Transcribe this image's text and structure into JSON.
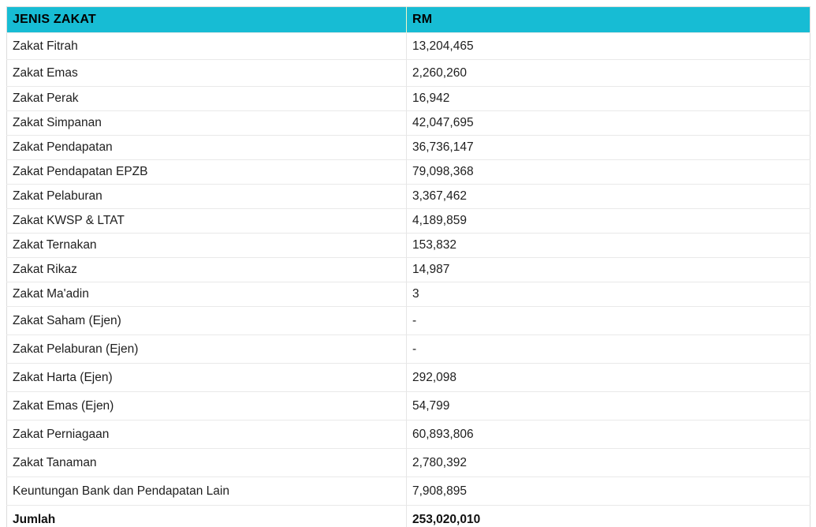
{
  "colors": {
    "header_bg": "#17BCD4",
    "header_text": "#000000",
    "body_text": "#1e1e1e",
    "outer_border": "#dcdcdc",
    "row_line": "#e9e9e9"
  },
  "table": {
    "header": {
      "jenis": "JENIS ZAKAT",
      "rm": "RM"
    },
    "rows": [
      {
        "jenis": "Zakat Fitrah",
        "rm": "13,204,465"
      },
      {
        "jenis": "Zakat Emas",
        "rm": "2,260,260"
      },
      {
        "jenis": "Zakat Perak",
        "rm": "16,942"
      },
      {
        "jenis": "Zakat Simpanan",
        "rm": "42,047,695"
      },
      {
        "jenis": "Zakat Pendapatan",
        "rm": "36,736,147"
      },
      {
        "jenis": "Zakat Pendapatan EPZB",
        "rm": "79,098,368"
      },
      {
        "jenis": "Zakat Pelaburan",
        "rm": "3,367,462"
      },
      {
        "jenis": "Zakat KWSP & LTAT",
        "rm": "4,189,859"
      },
      {
        "jenis": "Zakat Ternakan",
        "rm": "153,832"
      },
      {
        "jenis": "Zakat Rikaz",
        "rm": "14,987"
      },
      {
        "jenis": "Zakat Ma'adin",
        "rm": "3"
      },
      {
        "jenis": "Zakat Saham (Ejen)",
        "rm": "-"
      },
      {
        "jenis": "Zakat Pelaburan (Ejen)",
        "rm": "-"
      },
      {
        "jenis": "Zakat Harta (Ejen)",
        "rm": "292,098"
      },
      {
        "jenis": "Zakat Emas (Ejen)",
        "rm": "54,799"
      },
      {
        "jenis": "Zakat Perniagaan",
        "rm": "60,893,806"
      },
      {
        "jenis": "Zakat Tanaman",
        "rm": "2,780,392"
      },
      {
        "jenis": "Keuntungan Bank dan Pendapatan Lain",
        "rm": "7,908,895"
      }
    ],
    "total_row": {
      "jenis": "Jumlah",
      "rm": "253,020,010"
    }
  }
}
